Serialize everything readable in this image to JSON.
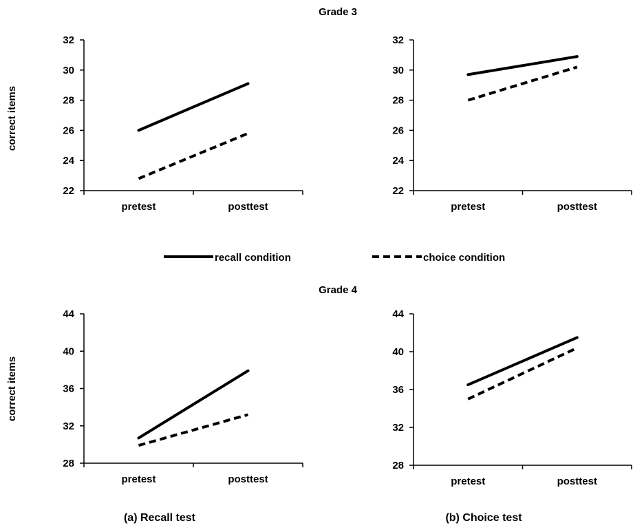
{
  "legend": {
    "series": [
      {
        "name": "recall condition",
        "style": "solid"
      },
      {
        "name": "choice condition",
        "style": "dashed"
      }
    ]
  },
  "grade_titles": [
    "Grade 3",
    "Grade 4"
  ],
  "ylabel": "correct items",
  "captions": [
    "(a) Recall test",
    "(b) Choice test"
  ],
  "chart_data": [
    {
      "type": "line",
      "group": "Grade 3",
      "panel": "(a) Recall test",
      "categories": [
        "pretest",
        "posttest"
      ],
      "ylabel": "correct items",
      "ylim": [
        22,
        32
      ],
      "yticks": [
        22,
        24,
        26,
        28,
        30,
        32
      ],
      "grid": false,
      "series": [
        {
          "name": "recall condition",
          "values": [
            26.0,
            29.1
          ]
        },
        {
          "name": "choice condition",
          "values": [
            22.8,
            25.8
          ]
        }
      ]
    },
    {
      "type": "line",
      "group": "Grade 3",
      "panel": "(b) Choice test",
      "categories": [
        "pretest",
        "posttest"
      ],
      "ylim": [
        22,
        32
      ],
      "yticks": [
        22,
        24,
        26,
        28,
        30,
        32
      ],
      "grid": false,
      "series": [
        {
          "name": "recall condition",
          "values": [
            29.7,
            30.9
          ]
        },
        {
          "name": "choice condition",
          "values": [
            28.0,
            30.2
          ]
        }
      ]
    },
    {
      "type": "line",
      "group": "Grade 4",
      "panel": "(a) Recall test",
      "categories": [
        "pretest",
        "posttest"
      ],
      "ylabel": "correct items",
      "ylim": [
        28,
        44
      ],
      "yticks": [
        28,
        32,
        36,
        40,
        44
      ],
      "grid": false,
      "series": [
        {
          "name": "recall condition",
          "values": [
            30.7,
            37.9
          ]
        },
        {
          "name": "choice condition",
          "values": [
            29.9,
            33.2
          ]
        }
      ]
    },
    {
      "type": "line",
      "group": "Grade 4",
      "panel": "(b) Choice test",
      "categories": [
        "pretest",
        "posttest"
      ],
      "ylim": [
        28,
        44
      ],
      "yticks": [
        28,
        32,
        36,
        40,
        44
      ],
      "grid": false,
      "series": [
        {
          "name": "recall condition",
          "values": [
            36.5,
            41.5
          ]
        },
        {
          "name": "choice condition",
          "values": [
            35.0,
            40.4
          ]
        }
      ]
    }
  ]
}
